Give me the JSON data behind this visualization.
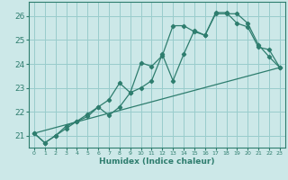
{
  "xlabel": "Humidex (Indice chaleur)",
  "bg_color": "#cce8e8",
  "grid_color": "#99cccc",
  "line_color": "#2e7d6e",
  "spine_color": "#2e7d6e",
  "xlim": [
    -0.5,
    23.5
  ],
  "ylim": [
    20.5,
    26.6
  ],
  "yticks": [
    21,
    22,
    23,
    24,
    25,
    26
  ],
  "xticks": [
    0,
    1,
    2,
    3,
    4,
    5,
    6,
    7,
    8,
    9,
    10,
    11,
    12,
    13,
    14,
    15,
    16,
    17,
    18,
    19,
    20,
    21,
    22,
    23
  ],
  "series1_x": [
    0,
    1,
    2,
    3,
    4,
    5,
    6,
    7,
    8,
    9,
    10,
    11,
    12,
    13,
    14,
    15,
    16,
    17,
    18,
    19,
    20,
    21,
    22,
    23
  ],
  "series1_y": [
    21.1,
    20.7,
    21.0,
    21.3,
    21.6,
    21.8,
    22.2,
    21.85,
    22.2,
    22.8,
    24.05,
    23.9,
    24.35,
    25.6,
    25.6,
    25.35,
    25.2,
    26.15,
    26.15,
    25.7,
    25.55,
    24.7,
    24.6,
    23.85
  ],
  "series2_x": [
    0,
    1,
    2,
    3,
    4,
    5,
    6,
    7,
    8,
    9,
    10,
    11,
    12,
    13,
    14,
    15,
    16,
    17,
    18,
    19,
    20,
    21,
    22,
    23
  ],
  "series2_y": [
    21.1,
    20.7,
    21.0,
    21.4,
    21.6,
    21.9,
    22.2,
    22.5,
    23.2,
    22.8,
    23.0,
    23.3,
    24.4,
    23.3,
    24.4,
    25.4,
    25.2,
    26.1,
    26.1,
    26.1,
    25.7,
    24.8,
    24.3,
    23.85
  ],
  "series3_x": [
    0,
    23
  ],
  "series3_y": [
    21.1,
    23.85
  ]
}
